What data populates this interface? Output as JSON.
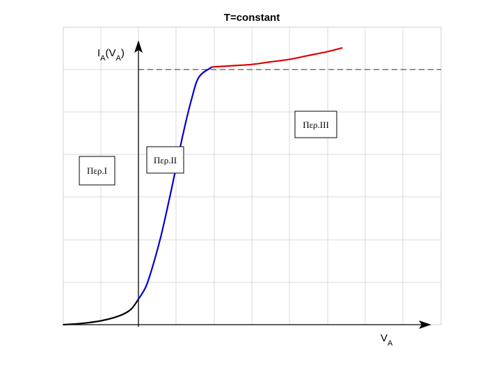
{
  "chart_data": {
    "type": "line",
    "title": "T=constant",
    "ylabel": {
      "main": "I",
      "sub1": "A",
      "open": "(V",
      "sub2": "A",
      "close": ")"
    },
    "xlabel": {
      "main": "V",
      "sub": "A"
    },
    "grid": true,
    "legend": "none",
    "reference_line": {
      "style": "dashed",
      "color": "#555555",
      "y": 1.0
    },
    "series": [
      {
        "segment": "region-1",
        "color": "#000000",
        "points": [
          [
            -2.0,
            0.0
          ],
          [
            -1.5,
            0.005
          ],
          [
            -1.0,
            0.015
          ],
          [
            -0.5,
            0.035
          ],
          [
            -0.2,
            0.06
          ],
          [
            0.0,
            0.1
          ]
        ]
      },
      {
        "segment": "region-2",
        "color": "#0000cc",
        "points": [
          [
            0.0,
            0.1
          ],
          [
            0.2,
            0.15
          ],
          [
            0.4,
            0.24
          ],
          [
            0.6,
            0.35
          ],
          [
            0.8,
            0.48
          ],
          [
            1.0,
            0.62
          ],
          [
            1.2,
            0.76
          ],
          [
            1.4,
            0.88
          ],
          [
            1.6,
            0.97
          ],
          [
            1.95,
            1.01
          ]
        ]
      },
      {
        "segment": "region-3",
        "color": "#dd0000",
        "points": [
          [
            1.95,
            1.01
          ],
          [
            2.5,
            1.015
          ],
          [
            3.0,
            1.02
          ],
          [
            3.5,
            1.03
          ],
          [
            4.0,
            1.04
          ],
          [
            4.5,
            1.055
          ],
          [
            5.0,
            1.07
          ],
          [
            5.4,
            1.085
          ]
        ]
      }
    ],
    "annotations": [
      {
        "id": "per-1",
        "text": "Περ.Ι"
      },
      {
        "id": "per-2",
        "text": "Περ.ΙΙ"
      },
      {
        "id": "per-3",
        "text": "Περ.ΙΙΙ"
      }
    ]
  }
}
